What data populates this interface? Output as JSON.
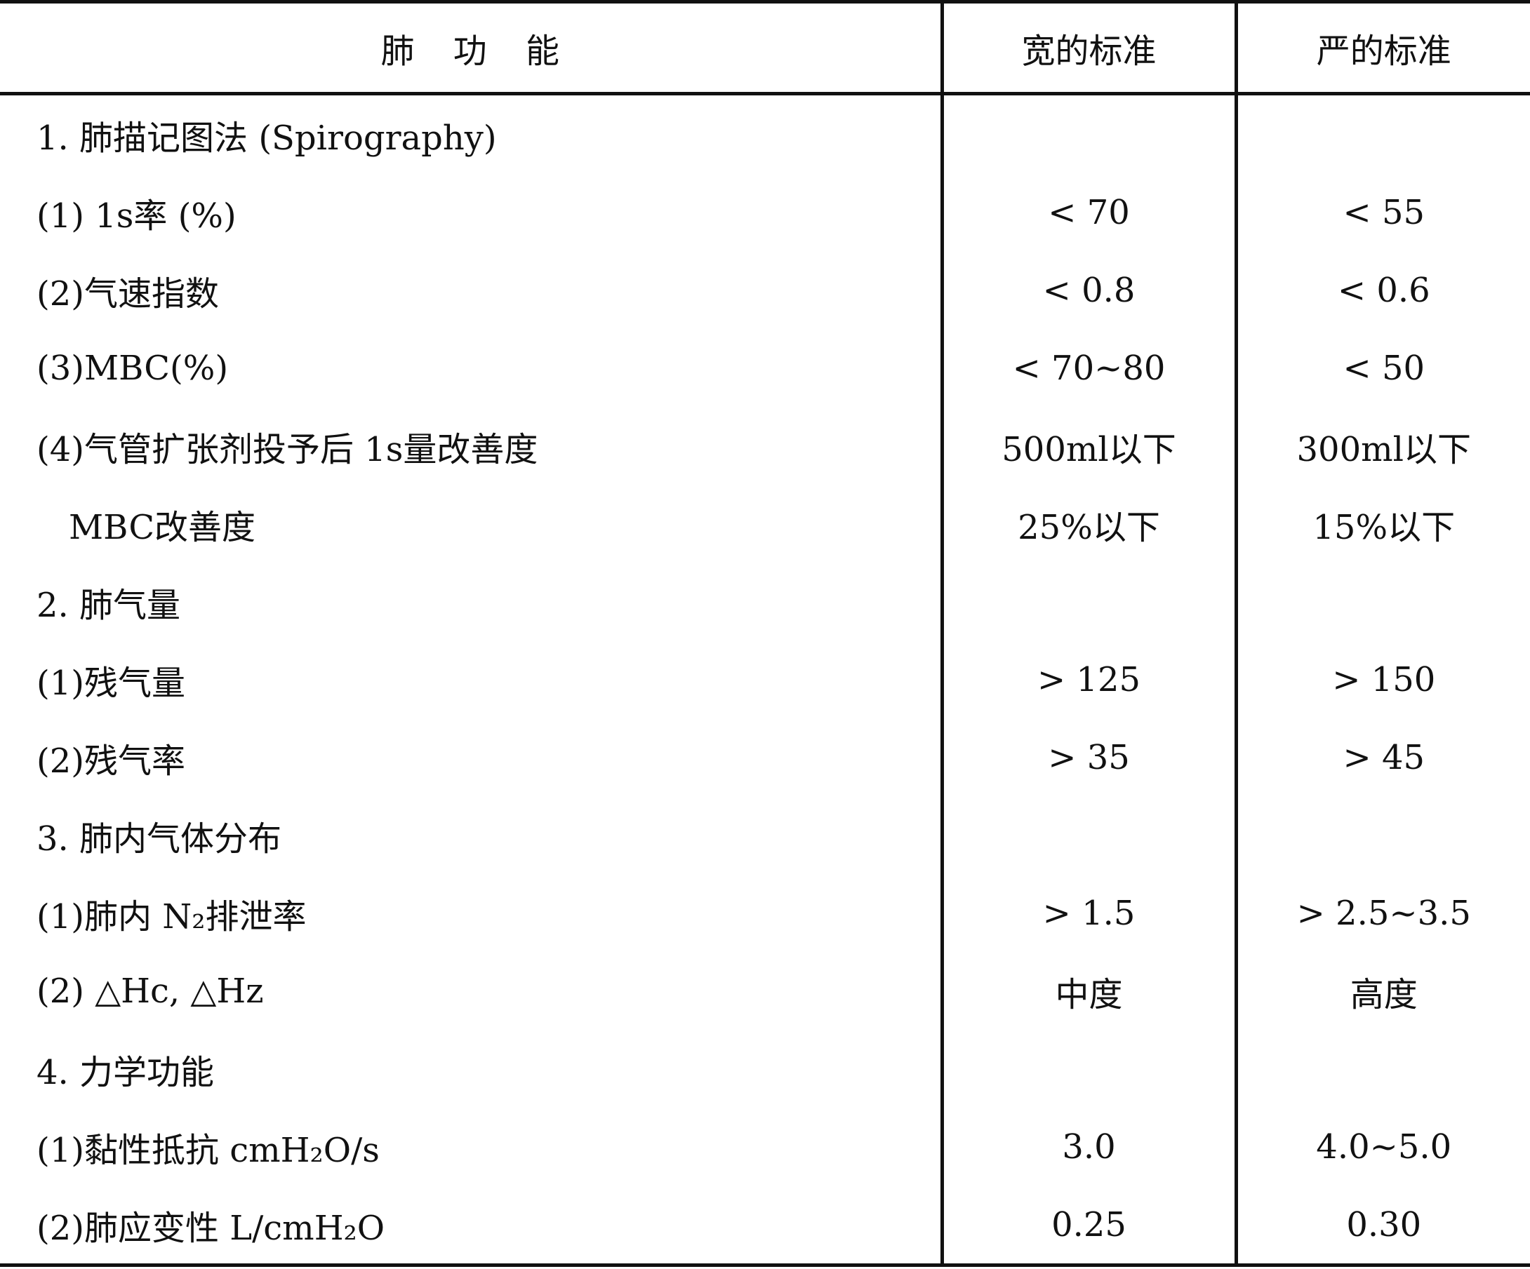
{
  "table": {
    "header": [
      "肺 功 能",
      "宽的标准",
      "严的标准"
    ],
    "rows": [
      [
        "1. 肺描记图法 (Spirography)"
      ],
      [
        "(1) 1s率 (%)",
        "< 70",
        "< 55"
      ],
      [
        "(2)气速指数",
        "< 0.8",
        "< 0.6"
      ],
      [
        "(3)MBC(%)",
        "< 70~80",
        "< 50"
      ],
      [
        "(4)气管扩张剂投予后 1s量改善度",
        "500ml以下",
        "300ml以下"
      ],
      [
        "MBC改善度",
        "25%以下",
        "15%以下"
      ],
      [
        "2. 肺气量"
      ],
      [
        "(1)残气量",
        "> 125",
        "> 150"
      ],
      [
        "(2)残气率",
        "> 35",
        "> 45"
      ],
      [
        "3. 肺内气体分布"
      ],
      [
        "(1)肺内 N₂排泄率",
        "> 1.5",
        "> 2.5~3.5"
      ],
      [
        "(2) △Hc, △Hz",
        "中度",
        "高度"
      ],
      [
        "4. 力学功能"
      ],
      [
        "(1)黏性抵抗 cmH₂O/s",
        "3.0",
        "4.0~5.0"
      ],
      [
        "(2)肺应变性 L/cmH₂O",
        "0.25",
        "0.30"
      ]
    ]
  }
}
